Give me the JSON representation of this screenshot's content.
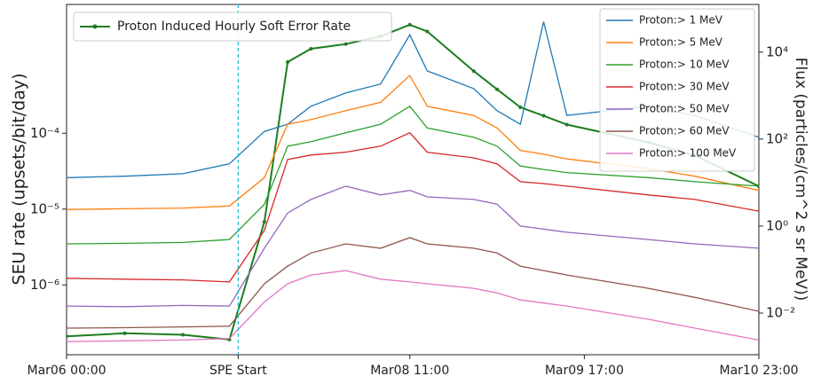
{
  "chart_data": {
    "type": "line",
    "x": [
      0,
      10,
      20,
      28,
      34,
      38,
      42,
      48,
      54,
      59,
      62,
      70,
      74,
      78,
      82,
      86,
      100,
      108,
      119
    ],
    "xlim": [
      0,
      119
    ],
    "xticks": [
      {
        "value": 0,
        "label": "Mar06 00:00"
      },
      {
        "value": 29.5,
        "label": "SPE Start"
      },
      {
        "value": 59,
        "label": "Mar08 11:00"
      },
      {
        "value": 89,
        "label": "Mar09 17:00"
      },
      {
        "value": 119,
        "label": "Mar10 23:00"
      }
    ],
    "marker_line": 29.5,
    "marker_color": "#17becf",
    "ylabel": "SEU rate (upsets/bit/day)",
    "ylog": true,
    "ylim": [
      1.2e-07,
      0.005
    ],
    "yticks": [
      {
        "value": 1e-06,
        "label": "10⁻⁶"
      },
      {
        "value": 1e-05,
        "label": "10⁻⁵"
      },
      {
        "value": 0.0001,
        "label": "10⁻⁴"
      }
    ],
    "y2label": "Flux (particles/(cm^2 s sr MeV))",
    "y2log": true,
    "y2lim": [
      0.0011,
      125000
    ],
    "y2ticks": [
      {
        "value": 0.01,
        "label": "10⁻²"
      },
      {
        "value": 1,
        "label": "10⁰"
      },
      {
        "value": 100,
        "label": "10²"
      },
      {
        "value": 10000,
        "label": "10⁴"
      }
    ],
    "grid": false,
    "series": [
      {
        "name": "Proton Induced Hourly Soft Error Rate",
        "color": "#1e7d1e",
        "axis": "y",
        "markers": true,
        "values": [
          2.1e-07,
          2.3e-07,
          2.2e-07,
          1.9e-07,
          6.8e-06,
          0.00087,
          0.0013,
          0.0015,
          0.0019,
          0.0027,
          0.0022,
          0.00066,
          0.00038,
          0.00022,
          0.00017,
          0.00013,
          7.6e-05,
          5.1e-05,
          2e-05
        ]
      },
      {
        "name": "Proton:> 1 MeV",
        "color": "#1f77b4",
        "axis": "y2",
        "values": [
          13,
          14,
          16,
          27,
          150,
          220,
          570,
          1150,
          1850,
          25000,
          3700,
          1450,
          450,
          220,
          50000,
          350,
          570,
          350,
          110
        ]
      },
      {
        "name": "Proton:> 5 MeV",
        "color": "#ff7f0e",
        "axis": "y2",
        "values": [
          2.4,
          2.5,
          2.6,
          2.9,
          13,
          220,
          280,
          450,
          700,
          2900,
          570,
          350,
          180,
          55,
          45,
          35,
          21,
          14,
          6.6
        ]
      },
      {
        "name": "Proton:> 10 MeV",
        "color": "#2ca02c",
        "axis": "y2",
        "values": [
          0.39,
          0.4,
          0.42,
          0.49,
          3.2,
          69,
          87,
          140,
          220,
          570,
          180,
          110,
          69,
          24,
          20,
          17,
          13,
          10.5,
          8.3
        ]
      },
      {
        "name": "Proton:> 30 MeV",
        "color": "#d62728",
        "axis": "y2",
        "values": [
          0.063,
          0.06,
          0.058,
          0.052,
          0.8,
          34,
          43,
          50,
          69,
          140,
          50,
          37,
          27,
          10.5,
          9.5,
          8.3,
          5.2,
          4.1,
          2.2
        ]
      },
      {
        "name": "Proton:> 50 MeV",
        "color": "#9467bd",
        "axis": "y2",
        "values": [
          0.0145,
          0.014,
          0.015,
          0.0145,
          0.31,
          2,
          4.1,
          8.3,
          5.2,
          6.6,
          4.7,
          4.1,
          3.2,
          1,
          0.85,
          0.72,
          0.49,
          0.39,
          0.31
        ]
      },
      {
        "name": "Proton:> 60 MeV",
        "color": "#8c564b",
        "axis": "y2",
        "values": [
          0.0045,
          0.0046,
          0.0048,
          0.005,
          0.047,
          0.12,
          0.24,
          0.39,
          0.31,
          0.54,
          0.39,
          0.31,
          0.24,
          0.12,
          0.095,
          0.075,
          0.037,
          0.023,
          0.011
        ]
      },
      {
        "name": "Proton:> 100 MeV",
        "color": "#e377c2",
        "axis": "y2",
        "values": [
          0.0022,
          0.0023,
          0.0024,
          0.0026,
          0.018,
          0.047,
          0.075,
          0.095,
          0.06,
          0.052,
          0.047,
          0.037,
          0.029,
          0.02,
          0.017,
          0.0145,
          0.0072,
          0.0045,
          0.0024
        ]
      }
    ]
  }
}
